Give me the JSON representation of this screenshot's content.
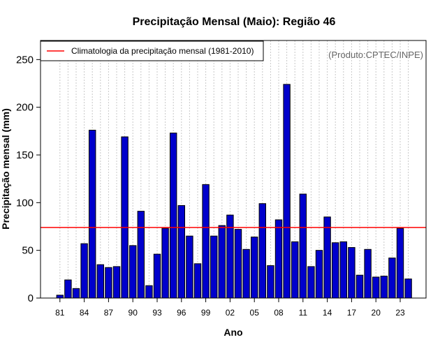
{
  "chart_data": {
    "type": "bar",
    "title": "Precipitação Mensal (Maio): Região 46",
    "xlabel": "Ano",
    "ylabel": "Precipitação mensal (mm)",
    "credit": "(Produto:CPTEC/INPE)",
    "ylim": [
      0,
      270
    ],
    "yticks": [
      0,
      50,
      100,
      150,
      200,
      250
    ],
    "categories": [
      "1981",
      "1982",
      "1983",
      "1984",
      "1985",
      "1986",
      "1987",
      "1988",
      "1989",
      "1990",
      "1991",
      "1992",
      "1993",
      "1994",
      "1995",
      "1996",
      "1997",
      "1998",
      "1999",
      "2000",
      "2001",
      "2002",
      "2003",
      "2004",
      "2005",
      "2006",
      "2007",
      "2008",
      "2009",
      "2010",
      "2011",
      "2012",
      "2013",
      "2014",
      "2015",
      "2016",
      "2017",
      "2018",
      "2019",
      "2020",
      "2021",
      "2022",
      "2023",
      "2024"
    ],
    "values": [
      3,
      19,
      10,
      57,
      176,
      35,
      32,
      33,
      169,
      55,
      91,
      13,
      46,
      73,
      173,
      97,
      65,
      36,
      119,
      65,
      76,
      87,
      72,
      51,
      64,
      99,
      34,
      82,
      224,
      59,
      109,
      33,
      50,
      85,
      58,
      59,
      53,
      24,
      51,
      22,
      23,
      42,
      73,
      20
    ],
    "tick_labels": [
      {
        "index": 0,
        "label": "81"
      },
      {
        "index": 3,
        "label": "84"
      },
      {
        "index": 6,
        "label": "87"
      },
      {
        "index": 9,
        "label": "90"
      },
      {
        "index": 12,
        "label": "93"
      },
      {
        "index": 15,
        "label": "96"
      },
      {
        "index": 18,
        "label": "99"
      },
      {
        "index": 21,
        "label": "02"
      },
      {
        "index": 24,
        "label": "05"
      },
      {
        "index": 27,
        "label": "08"
      },
      {
        "index": 30,
        "label": "11"
      },
      {
        "index": 33,
        "label": "14"
      },
      {
        "index": 36,
        "label": "17"
      },
      {
        "index": 39,
        "label": "20"
      },
      {
        "index": 42,
        "label": "23"
      }
    ],
    "climatology": {
      "value": 74,
      "label": "Climatologia da precipitação mensal (1981-2010)",
      "color": "#ff0000"
    },
    "bar_color": "#0000cc",
    "legend_position": "top-left",
    "grid": true
  }
}
